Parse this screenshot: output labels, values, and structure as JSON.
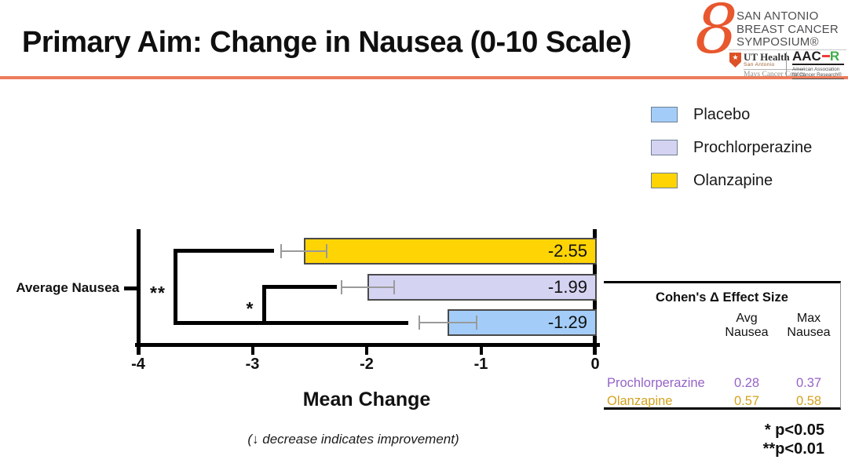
{
  "slide": {
    "title": "Primary Aim: Change in Nausea (0-10 Scale)",
    "footnote_italic": "(↓ decrease indicates improvement)",
    "sig_note_1": "* p<0.05",
    "sig_note_2": "**p<0.01"
  },
  "logo": {
    "org_lines": [
      "SAN ANTONIO",
      "BREAST CANCER",
      "SYMPOSIUM®"
    ],
    "ut_health": {
      "name": "UT Health",
      "city": "San Antonio",
      "center": "Mays Cancer Center",
      "star": "★"
    },
    "aacr": {
      "aac": "AAC",
      "r": "R",
      "tagline_1": "American Association",
      "tagline_2": "for Cancer Research®"
    }
  },
  "legend": {
    "items": [
      {
        "label": "Placebo",
        "color": "#A3CDF8"
      },
      {
        "label": "Prochlorperazine",
        "color": "#D5D3F2"
      },
      {
        "label": "Olanzapine",
        "color": "#FFD405"
      }
    ]
  },
  "chart_data": {
    "type": "bar",
    "orientation": "horizontal",
    "category": "Average Nausea",
    "xlabel": "Mean Change",
    "xlim": [
      -4,
      0
    ],
    "xticks": [
      -4,
      -3,
      -2,
      -1,
      0
    ],
    "grid": false,
    "series": [
      {
        "name": "Olanzapine",
        "value": -2.55,
        "label": "-2.55",
        "error": 0.2,
        "color": "#FFD405"
      },
      {
        "name": "Prochlorperazine",
        "value": -1.99,
        "label": "-1.99",
        "error": 0.23,
        "color": "#D5D3F2"
      },
      {
        "name": "Placebo",
        "value": -1.29,
        "label": "-1.29",
        "error": 0.25,
        "color": "#A3CDF8"
      }
    ],
    "significance": [
      {
        "symbol": "**",
        "comparison": "Olanzapine vs Placebo",
        "p": "p<0.01"
      },
      {
        "symbol": "*",
        "comparison": "Prochlorperazine vs Placebo",
        "p": "p<0.05"
      }
    ]
  },
  "effect_table": {
    "title": "Cohen's Δ Effect Size",
    "col_headers": [
      {
        "line1": "Avg",
        "line2": "Nausea"
      },
      {
        "line1": "Max",
        "line2": "Nausea"
      }
    ],
    "rows": [
      {
        "name": "Prochlorperazine",
        "avg": "0.28",
        "max": "0.37",
        "color": "#9663C6"
      },
      {
        "name": "Olanzapine",
        "avg": "0.57",
        "max": "0.58",
        "color": "#D2A21F"
      }
    ]
  }
}
